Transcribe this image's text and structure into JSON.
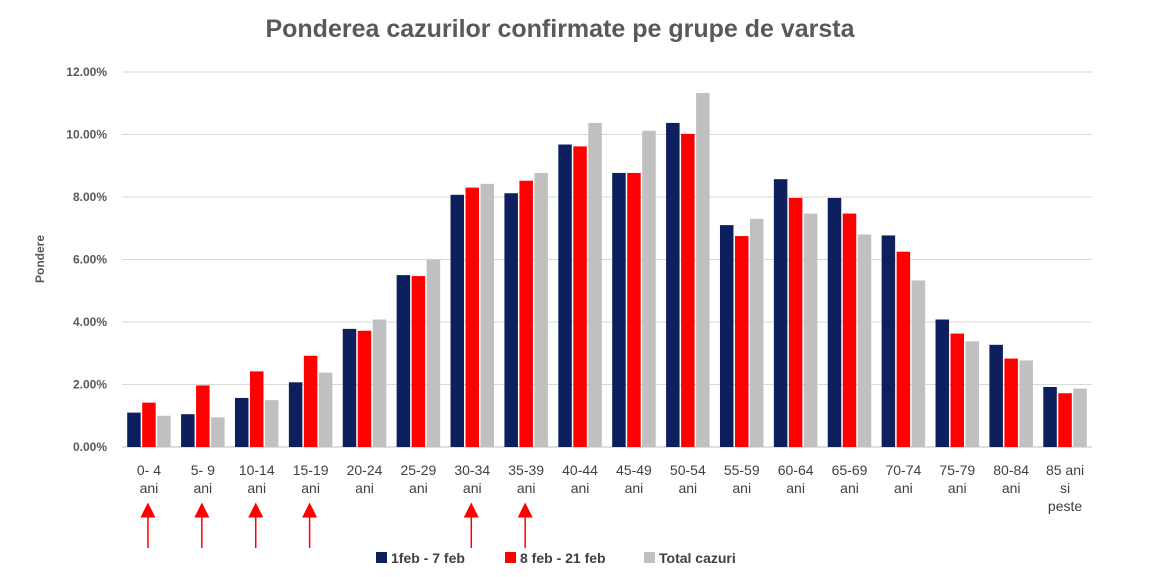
{
  "chart_data": {
    "type": "bar",
    "title": "Ponderea cazurilor confirmate pe grupe de varsta",
    "ylabel": "Pondere",
    "xlabel": "",
    "ylim": [
      0,
      12
    ],
    "yticks": [
      "0.00%",
      "2.00%",
      "4.00%",
      "6.00%",
      "8.00%",
      "10.00%",
      "12.00%"
    ],
    "grid": true,
    "legend_position": "bottom",
    "categories": [
      [
        "0- 4",
        "ani"
      ],
      [
        "5- 9",
        "ani"
      ],
      [
        "10-14",
        "ani"
      ],
      [
        "15-19",
        "ani"
      ],
      [
        "20-24",
        "ani"
      ],
      [
        "25-29",
        "ani"
      ],
      [
        "30-34",
        "ani"
      ],
      [
        "35-39",
        "ani"
      ],
      [
        "40-44",
        "ani"
      ],
      [
        "45-49",
        "ani"
      ],
      [
        "50-54",
        "ani"
      ],
      [
        "55-59",
        "ani"
      ],
      [
        "60-64",
        "ani"
      ],
      [
        "65-69",
        "ani"
      ],
      [
        "70-74",
        "ani"
      ],
      [
        "75-79",
        "ani"
      ],
      [
        "80-84",
        "ani"
      ],
      [
        "85 ani",
        "si",
        "peste"
      ]
    ],
    "series": [
      {
        "name": "1feb - 7 feb",
        "color": "#0d1f5c",
        "values": [
          1.1,
          1.05,
          1.57,
          2.07,
          3.78,
          5.5,
          8.07,
          8.12,
          9.68,
          8.77,
          10.37,
          7.1,
          8.57,
          7.97,
          6.77,
          4.08,
          3.27,
          1.92
        ]
      },
      {
        "name": "8 feb - 21 feb",
        "color": "#ff0000",
        "values": [
          1.42,
          1.97,
          2.42,
          2.92,
          3.72,
          5.47,
          8.3,
          8.52,
          9.62,
          8.77,
          10.02,
          6.75,
          7.97,
          7.47,
          6.25,
          3.63,
          2.83,
          1.72
        ]
      },
      {
        "name": "Total cazuri",
        "color": "#c0c0c0",
        "values": [
          1.0,
          0.95,
          1.5,
          2.38,
          4.08,
          6.0,
          8.42,
          8.77,
          10.37,
          10.12,
          11.33,
          7.3,
          7.47,
          6.8,
          5.33,
          3.38,
          2.77,
          1.87
        ]
      }
    ],
    "annotations": {
      "arrows_at_category_index": [
        0,
        1,
        2,
        3,
        6,
        7
      ],
      "arrow_color": "#ff0000"
    }
  }
}
